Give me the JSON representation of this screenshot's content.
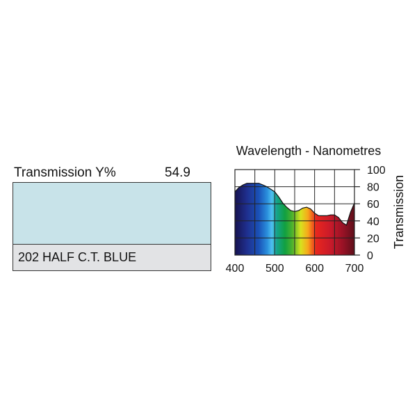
{
  "filter": {
    "transmission_label": "Transmission Y%",
    "transmission_value": "54.9",
    "name": "202 HALF C.T. BLUE",
    "swatch_color": "#c8e3e9",
    "label_bg": "#e2e3e5"
  },
  "chart_data": {
    "type": "area",
    "title": "Wavelength - Nanometres",
    "xlabel": "",
    "ylabel": "Transmission",
    "xlim": [
      400,
      700
    ],
    "ylim": [
      0,
      100
    ],
    "x_ticks": [
      400,
      500,
      600,
      700
    ],
    "y_ticks": [
      0,
      20,
      40,
      60,
      80,
      100
    ],
    "grid": true,
    "series": [
      {
        "x": [
          400,
          410,
          420,
          430,
          440,
          450,
          460,
          470,
          480,
          490,
          500,
          510,
          520,
          530,
          540,
          550,
          560,
          570,
          580,
          590,
          600,
          610,
          620,
          630,
          640,
          650,
          660,
          670,
          680,
          690,
          700
        ],
        "y": [
          74,
          79,
          82,
          84,
          84,
          84,
          84,
          82,
          80,
          77,
          74,
          68,
          61,
          56,
          52,
          51,
          52,
          55,
          56,
          54,
          49,
          46,
          46,
          46,
          47,
          47,
          44,
          38,
          35,
          50,
          61
        ]
      }
    ]
  }
}
